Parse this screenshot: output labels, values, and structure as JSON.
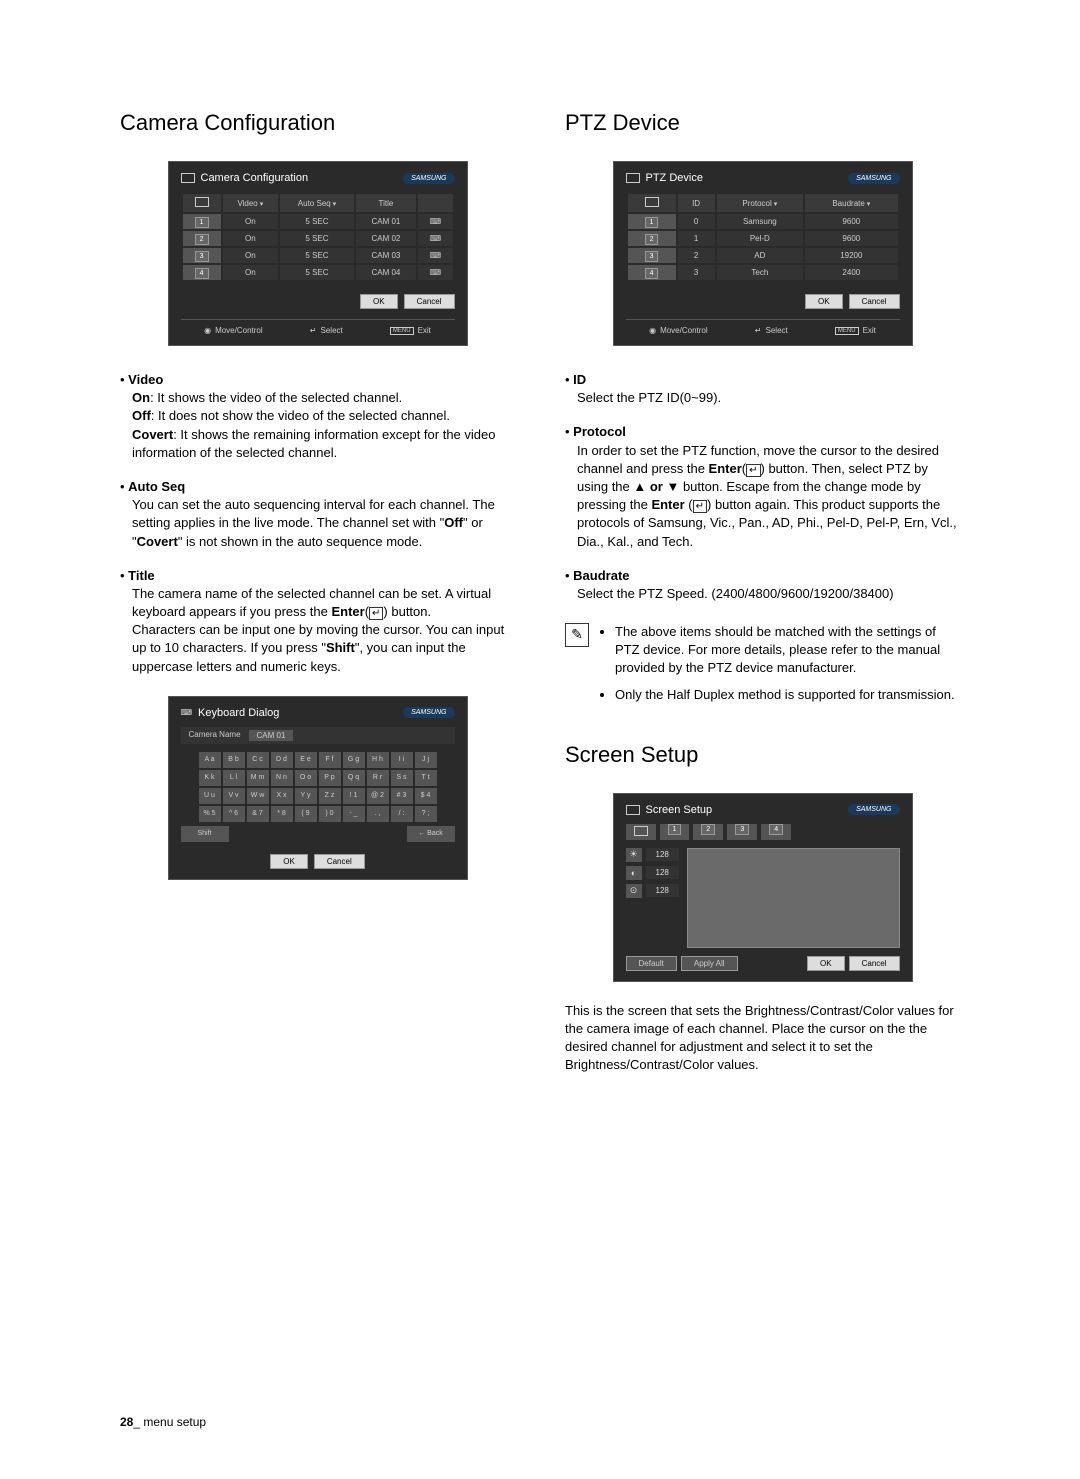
{
  "sections": {
    "camera_config": {
      "title": "Camera Configuration",
      "panel": {
        "title": "Camera Configuration",
        "brand": "SAMSUNG",
        "headers": {
          "video": "Video",
          "autoseq": "Auto Seq",
          "title_col": "Title"
        },
        "rows": [
          {
            "ch": "1",
            "video": "On",
            "autoseq": "5 SEC",
            "title": "CAM 01"
          },
          {
            "ch": "2",
            "video": "On",
            "autoseq": "5 SEC",
            "title": "CAM 02"
          },
          {
            "ch": "3",
            "video": "On",
            "autoseq": "5 SEC",
            "title": "CAM 03"
          },
          {
            "ch": "4",
            "video": "On",
            "autoseq": "5 SEC",
            "title": "CAM 04"
          }
        ],
        "ok": "OK",
        "cancel": "Cancel",
        "footer": {
          "move": "Move/Control",
          "select": "Select",
          "exit": "Exit",
          "menu": "MENU"
        }
      },
      "bullets": {
        "video": {
          "title": "Video",
          "on": "On",
          "on_text": ": It shows the video of the selected channel.",
          "off": "Off",
          "off_text": ": It does not show the video of the selected channel.",
          "covert": "Covert",
          "covert_text": ": It shows the remaining information except for the video information of the selected channel."
        },
        "autoseq": {
          "title": "Auto Seq",
          "text_a": "You can set the auto sequencing interval for each channel. The setting applies in the live mode. The channel set with \"",
          "off": "Off",
          "text_b": "\" or \"",
          "covert": "Covert",
          "text_c": "\" is not shown in the auto sequence mode."
        },
        "title_bullet": {
          "title": "Title",
          "text_a": "The camera name of the selected channel can be set. A virtual keyboard appears if you press the ",
          "enter": "Enter",
          "text_b": "(",
          "text_c": ") button.",
          "text_d": "Characters can be input one by moving the cursor. You can input up to 10 characters. If you press \"",
          "shift": "Shift",
          "text_e": "\", you can input the uppercase letters and numeric keys."
        }
      },
      "keyboard": {
        "title": "Keyboard Dialog",
        "brand": "SAMSUNG",
        "field_label": "Camera Name",
        "field_value": "CAM 01",
        "rows": [
          [
            "A a",
            "B b",
            "C c",
            "D d",
            "E e",
            "F f",
            "G g",
            "H h",
            "I i",
            "J j"
          ],
          [
            "K k",
            "L l",
            "M m",
            "N n",
            "O o",
            "P p",
            "Q q",
            "R r",
            "S s",
            "T t"
          ],
          [
            "U u",
            "V v",
            "W w",
            "X x",
            "Y y",
            "Z z",
            "! 1",
            "@ 2",
            "# 3",
            "$ 4"
          ],
          [
            "% 5",
            "^ 6",
            "& 7",
            "* 8",
            "( 9",
            ") 0",
            "- _",
            ". ,",
            "/ :",
            "? ;"
          ]
        ],
        "shift": "Shift",
        "back": "← Back",
        "ok": "OK",
        "cancel": "Cancel"
      }
    },
    "ptz": {
      "title": "PTZ Device",
      "panel": {
        "title": "PTZ Device",
        "brand": "SAMSUNG",
        "headers": {
          "id": "ID",
          "protocol": "Protocol",
          "baudrate": "Baudrate"
        },
        "rows": [
          {
            "ch": "1",
            "id": "0",
            "protocol": "Samsung",
            "baudrate": "9600"
          },
          {
            "ch": "2",
            "id": "1",
            "protocol": "Pel-D",
            "baudrate": "9600"
          },
          {
            "ch": "3",
            "id": "2",
            "protocol": "AD",
            "baudrate": "19200"
          },
          {
            "ch": "4",
            "id": "3",
            "protocol": "Tech",
            "baudrate": "2400"
          }
        ],
        "ok": "OK",
        "cancel": "Cancel",
        "footer": {
          "move": "Move/Control",
          "select": "Select",
          "exit": "Exit",
          "menu": "MENU"
        }
      },
      "bullets": {
        "id": {
          "title": "ID",
          "text": "Select the PTZ ID(0~99)."
        },
        "protocol": {
          "title": "Protocol",
          "text_a": "In order to set the PTZ function, move the cursor to the desired channel and press the ",
          "enter": "Enter",
          "text_b": "(",
          "text_c": ") button. Then, select PTZ by using the ▲ ",
          "or": "or",
          "text_d": " ▼ button. Escape from the change mode by pressing the ",
          "enter2": "Enter",
          "text_e": " (",
          "text_f": ") button again. This product supports the protocols of Samsung, Vic., Pan., AD, Phi., Pel-D, Pel-P, Ern, Vcl., Dia., Kal., and Tech."
        },
        "baudrate": {
          "title": "Baudrate",
          "text": "Select the PTZ Speed. (2400/4800/9600/19200/38400)"
        }
      },
      "note": {
        "item1": "The above items should be matched with the settings of PTZ device. For more details, please refer to the manual provided by the PTZ device manufacturer.",
        "item2": "Only the Half Duplex method is supported for transmission."
      }
    },
    "screen_setup": {
      "title": "Screen Setup",
      "panel": {
        "title": "Screen Setup",
        "brand": "SAMSUNG",
        "tabs": [
          "1",
          "2",
          "3",
          "4"
        ],
        "controls": [
          {
            "icon": "☀",
            "val": "128"
          },
          {
            "icon": "◐",
            "val": "128"
          },
          {
            "icon": "⊙",
            "val": "128"
          }
        ],
        "default": "Default",
        "apply_all": "Apply All",
        "ok": "OK",
        "cancel": "Cancel"
      },
      "text": "This is the screen that sets the Brightness/Contrast/Color values for the camera image of each channel. Place the cursor on the the desired channel for adjustment and select it to set the Brightness/Contrast/Color values."
    }
  },
  "footer": {
    "page": "28",
    "label": "_ menu setup"
  }
}
